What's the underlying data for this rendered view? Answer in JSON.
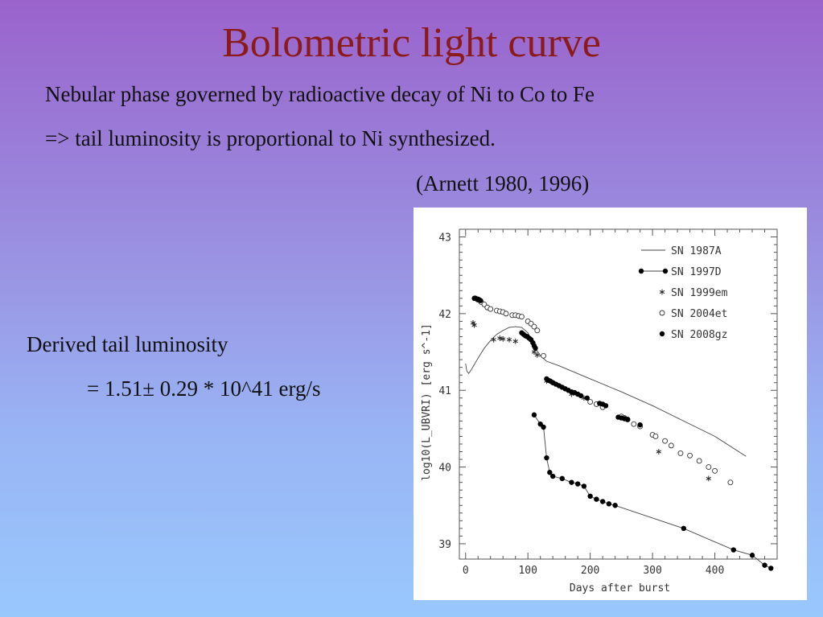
{
  "slide": {
    "title": "Bolometric light curve",
    "line1": "Nebular phase governed by radioactive decay of Ni to Co to Fe",
    "line2": "=> tail luminosity is proportional to Ni synthesized.",
    "citation": "(Arnett 1980, 1996)",
    "derived_label": "Derived tail luminosity",
    "derived_value": "= 1.51± 0.29 * 10^41 erg/s"
  },
  "chart_data": {
    "type": "scatter",
    "xlabel": "Days after burst",
    "ylabel": "log10(L_UBVRI) [erg s^-1]",
    "xlim": [
      -10,
      500
    ],
    "ylim": [
      38.8,
      43.1
    ],
    "x_ticks": [
      0,
      100,
      200,
      300,
      400
    ],
    "y_ticks": [
      39,
      40,
      41,
      42,
      43
    ],
    "grid": false,
    "legend_position": "top-right",
    "series": [
      {
        "name": "SN 1987A",
        "style": "line",
        "x": [
          0,
          2,
          5,
          10,
          20,
          30,
          40,
          50,
          60,
          70,
          80,
          90,
          100,
          110,
          120,
          130,
          150,
          200,
          250,
          300,
          350,
          400,
          450
        ],
        "y": [
          41.35,
          41.25,
          41.22,
          41.28,
          41.42,
          41.55,
          41.65,
          41.73,
          41.78,
          41.82,
          41.83,
          41.82,
          41.75,
          41.58,
          41.45,
          41.38,
          41.32,
          41.15,
          40.98,
          40.8,
          40.6,
          40.4,
          40.14
        ]
      },
      {
        "name": "SN 1997D",
        "style": "line-markers",
        "x": [
          110,
          120,
          125,
          130,
          135,
          140,
          155,
          170,
          180,
          190,
          200,
          210,
          220,
          230,
          240,
          350,
          430,
          460,
          480,
          490
        ],
        "y": [
          40.68,
          40.56,
          40.52,
          40.12,
          39.93,
          39.88,
          39.85,
          39.8,
          39.78,
          39.75,
          39.62,
          39.58,
          39.55,
          39.52,
          39.5,
          39.2,
          38.92,
          38.85,
          38.72,
          38.68
        ]
      },
      {
        "name": "SN 1999em",
        "style": "asterisk",
        "x": [
          12,
          14,
          45,
          55,
          60,
          70,
          80,
          110,
          115,
          130,
          140,
          170,
          190,
          210,
          310,
          390
        ],
        "y": [
          41.88,
          41.85,
          41.66,
          41.68,
          41.67,
          41.66,
          41.64,
          41.5,
          41.46,
          41.12,
          41.1,
          40.95,
          40.9,
          40.82,
          40.2,
          39.85
        ]
      },
      {
        "name": "SN 2004et",
        "style": "open-circle",
        "x": [
          15,
          20,
          25,
          30,
          35,
          40,
          50,
          55,
          60,
          65,
          75,
          80,
          85,
          90,
          100,
          105,
          110,
          115,
          125,
          200,
          210,
          220,
          250,
          255,
          260,
          270,
          280,
          300,
          305,
          320,
          330,
          345,
          360,
          375,
          390,
          400,
          425
        ],
        "y": [
          42.2,
          42.18,
          42.15,
          42.12,
          42.08,
          42.06,
          42.04,
          42.03,
          42.02,
          42.0,
          41.98,
          41.98,
          41.97,
          41.96,
          41.9,
          41.87,
          41.83,
          41.78,
          41.45,
          40.85,
          40.82,
          40.78,
          40.66,
          40.64,
          40.62,
          40.56,
          40.53,
          40.42,
          40.4,
          40.34,
          40.28,
          40.18,
          40.15,
          40.08,
          40.0,
          39.95,
          39.8
        ]
      },
      {
        "name": "SN 2008gz",
        "style": "filled-dot",
        "x": [
          14,
          16,
          18,
          20,
          22,
          24,
          90,
          93,
          96,
          99,
          102,
          105,
          108,
          110,
          112,
          130,
          133,
          136,
          140,
          145,
          150,
          155,
          160,
          165,
          170,
          175,
          180,
          185,
          195,
          215,
          220,
          225,
          245,
          250,
          255,
          260,
          280
        ],
        "y": [
          42.2,
          42.2,
          42.19,
          42.19,
          42.18,
          42.17,
          41.75,
          41.73,
          41.71,
          41.7,
          41.68,
          41.66,
          41.62,
          41.58,
          41.55,
          41.15,
          41.13,
          41.12,
          41.1,
          41.08,
          41.06,
          41.04,
          41.02,
          41.0,
          40.98,
          40.97,
          40.95,
          40.93,
          40.9,
          40.83,
          40.82,
          40.8,
          40.65,
          40.64,
          40.63,
          40.62,
          40.55
        ]
      }
    ]
  }
}
